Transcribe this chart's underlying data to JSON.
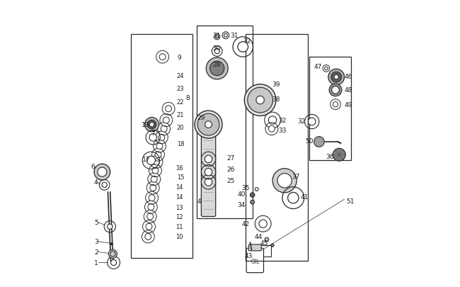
{
  "bg_color": "#ffffff",
  "fig_width": 6.5,
  "fig_height": 4.06,
  "dpi": 100,
  "line_color": "#2a2a2a",
  "label_color": "#1a1a1a"
}
